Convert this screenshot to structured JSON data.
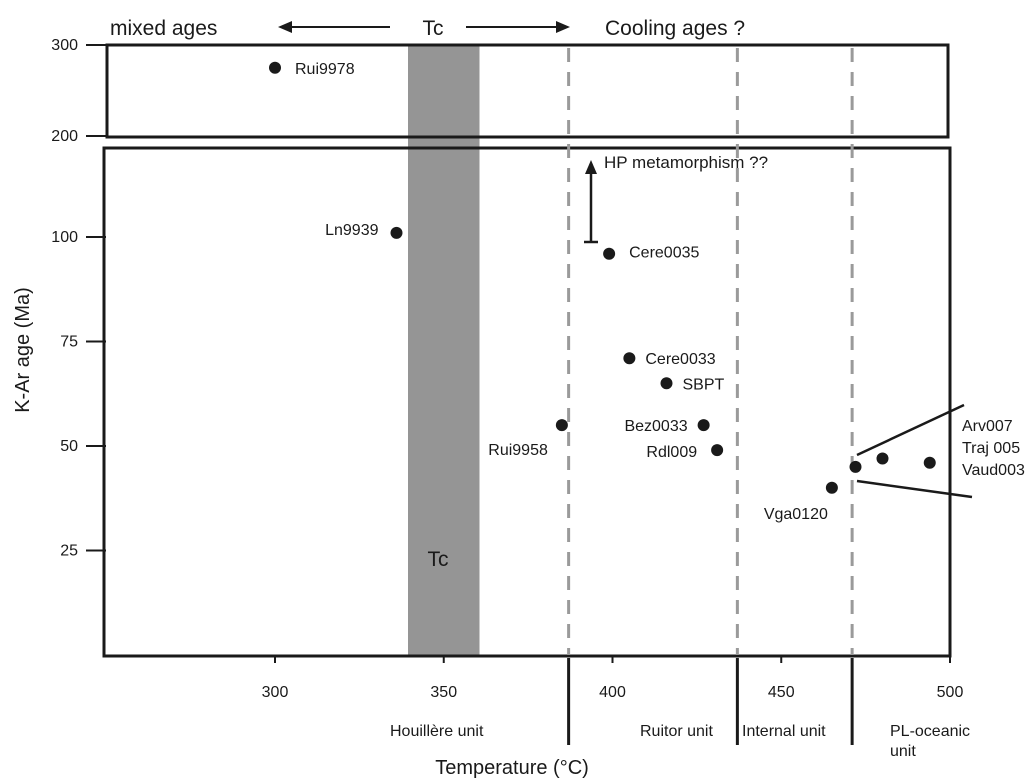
{
  "chart_data": {
    "type": "scatter",
    "xlabel": "Temperature (°C)",
    "ylabel": "K-Ar age (Ma)",
    "xlim": [
      250,
      500
    ],
    "x_ticks": [
      300,
      350,
      400,
      450,
      500
    ],
    "y_ticks_lower": [
      25,
      50,
      75,
      100
    ],
    "y_ticks_upper": [
      200,
      300
    ],
    "y_axis_note": "broken y axis: lower panel 0-125 Ma, upper panel 200-300 Ma",
    "points": [
      {
        "label": "Rui9978",
        "x": 300,
        "y": 275
      },
      {
        "label": "Ln9939",
        "x": 336,
        "y": 101
      },
      {
        "label": "Cere0035",
        "x": 399,
        "y": 96
      },
      {
        "label": "Cere0033",
        "x": 405,
        "y": 71
      },
      {
        "label": "SBPT",
        "x": 416,
        "y": 65
      },
      {
        "label": "Rui9958",
        "x": 385,
        "y": 55
      },
      {
        "label": "Bez0033",
        "x": 427,
        "y": 55
      },
      {
        "label": "Rdl009",
        "x": 431,
        "y": 49
      },
      {
        "label": "Vga0120",
        "x": 465,
        "y": 40
      },
      {
        "label": "",
        "x": 472,
        "y": 45
      },
      {
        "label": "",
        "x": 480,
        "y": 47
      },
      {
        "label": "",
        "x": 494,
        "y": 46
      }
    ],
    "grouped_labels": [
      "Arv007",
      "Traj 005",
      "Vaud003"
    ],
    "tc_band": {
      "label": "Tc",
      "x_range": [
        340,
        360
      ],
      "color": "#959595"
    },
    "unit_boundaries": [
      {
        "x": 387,
        "style": "dashed"
      },
      {
        "x": 437,
        "style": "dashed"
      },
      {
        "x": 471,
        "style": "dashed"
      }
    ],
    "units": [
      "Houillère unit",
      "Ruitor unit",
      "Internal unit",
      "PL-oceanic unit"
    ],
    "top_annotations": {
      "left": "mixed ages",
      "center": "Tc",
      "right": "Cooling ages ?"
    },
    "hp_annotation": {
      "label": "HP metamorphism ??",
      "x": 393,
      "y_from": 98,
      "direction": "up"
    },
    "colors": {
      "points": "#1a1a1a",
      "band": "#959595",
      "dashed": "#9a9a9a",
      "frame": "#1a1a1a"
    }
  }
}
